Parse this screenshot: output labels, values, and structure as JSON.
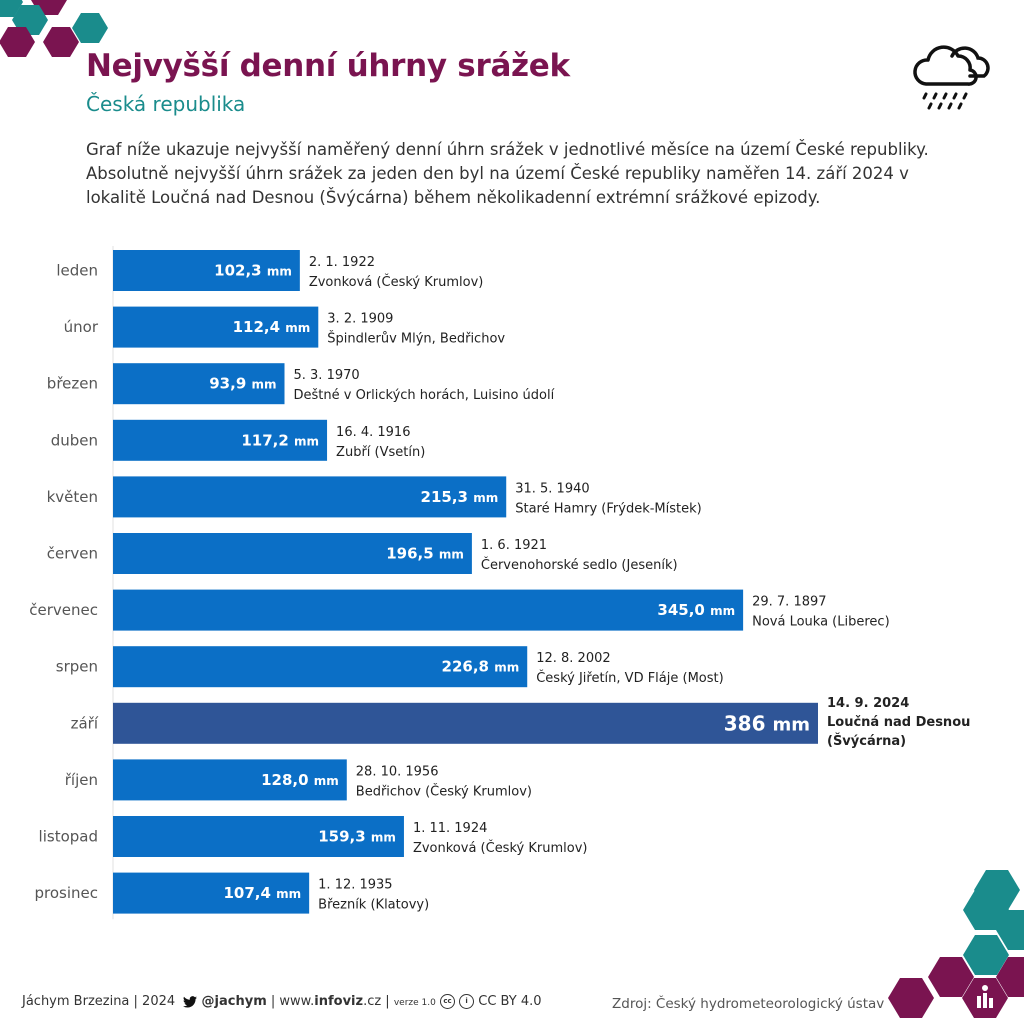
{
  "header": {
    "title": "Nejvyšší denní úhrny srážek",
    "subtitle": "Česká republika",
    "intro": "Graf níže ukazuje nejvyšší naměřený denní úhrn srážek v jednotlivé měsíce na území České republiky. Absolutně nejvyšší úhrn srážek za jeden den byl na území České republiky naměřen 14. září 2024 v lokalitě Loučná nad Desnou (Švýcárna) během několikadenní extrémní srážkové epizody.",
    "icon": "rain-cloud-icon"
  },
  "chart_data": {
    "type": "bar",
    "orientation": "horizontal",
    "unit": "mm",
    "categories": [
      "leden",
      "únor",
      "březen",
      "duben",
      "květen",
      "červen",
      "červenec",
      "srpen",
      "září",
      "říjen",
      "listopad",
      "prosinec"
    ],
    "values": [
      102.3,
      112.4,
      93.9,
      117.2,
      215.3,
      196.5,
      345.0,
      226.8,
      386,
      128.0,
      159.3,
      107.4
    ],
    "value_labels": [
      "102,3",
      "112,4",
      "93,9",
      "117,2",
      "215,3",
      "196,5",
      "345,0",
      "226,8",
      "386",
      "128,0",
      "159,3",
      "107,4"
    ],
    "dates": [
      "2. 1. 1922",
      "3. 2. 1909",
      "5. 3. 1970",
      "16. 4. 1916",
      "31. 5. 1940",
      "1. 6. 1921",
      "29. 7. 1897",
      "12. 8. 2002",
      "14. 9. 2024",
      "28. 10. 1956",
      "1. 11. 1924",
      "1. 12. 1935"
    ],
    "locations": [
      [
        "Zvonková (Český Krumlov)"
      ],
      [
        "Špindlerův Mlýn, Bedřichov"
      ],
      [
        "Deštné v Orlických horách, Luisino údolí"
      ],
      [
        "Zubří (Vsetín)"
      ],
      [
        "Staré Hamry (Frýdek-Místek)"
      ],
      [
        "Červenohorské sedlo (Jeseník)"
      ],
      [
        "Nová Louka (Liberec)"
      ],
      [
        "Český Jiřetín, VD Fláje (Most)"
      ],
      [
        "Loučná nad Desnou",
        "(Švýcárna)"
      ],
      [
        "Bedřichov (Český Krumlov)"
      ],
      [
        "Zvonková (Český Krumlov)"
      ],
      [
        "Březník (Klatovy)"
      ]
    ],
    "highlight_index": 8,
    "colors": {
      "bar": "#0b6fc6",
      "highlight": "#2f5597"
    }
  },
  "footer": {
    "author": "Jáchym Brzezina | 2024",
    "twitter": "@jachym",
    "site_prefix": "| www.",
    "site_bold": "infoviz",
    "site_suffix": ".cz |",
    "version": "verze 1.0",
    "license": "CC BY 4.0",
    "source": "Zdroj: Český hydrometeorologický ústav"
  },
  "colors": {
    "title": "#7a1450",
    "subtitle": "#1a8c8c",
    "hex_purple": "#7a1450",
    "hex_teal": "#1a8c8c"
  }
}
